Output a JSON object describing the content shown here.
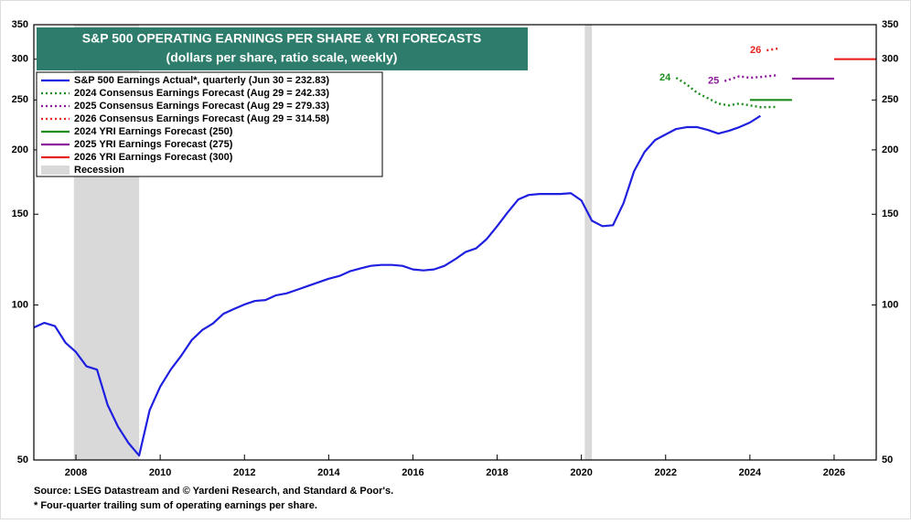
{
  "chart_data": {
    "type": "line",
    "title": "S&P 500 OPERATING EARNINGS PER SHARE & YRI FORECASTS",
    "subtitle": "(dollars per share, ratio scale, weekly)",
    "log_scale": true,
    "xlim": [
      2007,
      2027
    ],
    "xticks": [
      2008,
      2010,
      2012,
      2014,
      2016,
      2018,
      2020,
      2022,
      2024,
      2026
    ],
    "ylim": [
      50,
      350
    ],
    "yticks": [
      50,
      100,
      150,
      200,
      250,
      300,
      350
    ],
    "series": [
      {
        "name": "S&P 500 Earnings Actual*, quarterly (Jun 30 = 232.83)",
        "color": "#1f1fe0",
        "style": "solid",
        "x": [
          2007,
          2007.25,
          2007.5,
          2007.75,
          2008,
          2008.25,
          2008.5,
          2008.75,
          2009,
          2009.25,
          2009.5,
          2009.75,
          2010,
          2010.25,
          2010.5,
          2010.75,
          2011,
          2011.25,
          2011.5,
          2011.75,
          2012,
          2012.25,
          2012.5,
          2012.75,
          2013,
          2013.25,
          2013.5,
          2013.75,
          2014,
          2014.25,
          2014.5,
          2014.75,
          2015,
          2015.25,
          2015.5,
          2015.75,
          2016,
          2016.25,
          2016.5,
          2016.75,
          2017,
          2017.25,
          2017.5,
          2017.75,
          2018,
          2018.25,
          2018.5,
          2018.75,
          2019,
          2019.25,
          2019.5,
          2019.75,
          2020,
          2020.25,
          2020.5,
          2020.75,
          2021,
          2021.25,
          2021.5,
          2021.75,
          2022,
          2022.25,
          2022.5,
          2022.75,
          2023,
          2023.25,
          2023.5,
          2023.75,
          2024,
          2024.25
        ],
        "values": [
          90.4,
          92.3,
          91,
          84.5,
          81,
          76,
          74.9,
          64,
          58,
          53.9,
          51,
          62.5,
          69.4,
          74.9,
          79.7,
          85.5,
          89.4,
          92,
          96.1,
          98.2,
          100.2,
          101.8,
          102.2,
          104.4,
          105.3,
          107,
          108.8,
          110.6,
          112.4,
          113.8,
          116.2,
          117.7,
          119.1,
          119.6,
          119.6,
          119.1,
          117.2,
          116.7,
          117.2,
          119.1,
          122.6,
          126.7,
          128.8,
          134.2,
          142.2,
          151.3,
          160.2,
          163.5,
          164.2,
          164.2,
          164.2,
          164.8,
          159.5,
          145.7,
          142.2,
          142.8,
          157.6,
          181.8,
          198.2,
          209,
          214.3,
          219.6,
          221.4,
          221.4,
          218.7,
          215.1,
          217.8,
          221.4,
          226,
          232.83
        ]
      },
      {
        "name": "2024 Consensus Earnings Forecast (Aug 29 = 242.33)",
        "color": "#1e8c1e",
        "style": "dotted",
        "tag": "24",
        "x": [
          2022.25,
          2022.5,
          2022.75,
          2023,
          2023.25,
          2023.5,
          2023.75,
          2024,
          2024.25,
          2024.66
        ],
        "values": [
          276,
          268,
          258,
          252,
          246,
          244,
          246,
          244,
          242,
          242.33
        ]
      },
      {
        "name": "2025 Consensus Earnings Forecast (Aug 29 = 279.33)",
        "color": "#8b1a9a",
        "style": "dotted",
        "tag": "25",
        "x": [
          2023.4,
          2023.75,
          2024,
          2024.25,
          2024.66
        ],
        "values": [
          272,
          278,
          276,
          277,
          279.33
        ]
      },
      {
        "name": "2026 Consensus Earnings Forecast (Aug 29 = 314.58)",
        "color": "#e8231e",
        "style": "dotted",
        "tag": "26",
        "x": [
          2024.4,
          2024.66
        ],
        "values": [
          312,
          314.58
        ]
      },
      {
        "name": "2024 YRI Earnings Forecast (250)",
        "color": "#1e8c1e",
        "style": "solid",
        "x": [
          2024,
          2025
        ],
        "values": [
          250,
          250
        ]
      },
      {
        "name": "2025 YRI Earnings Forecast (275)",
        "color": "#8b1a9a",
        "style": "solid",
        "x": [
          2025,
          2026
        ],
        "values": [
          275,
          275
        ]
      },
      {
        "name": "2026 YRI Earnings Forecast (300)",
        "color": "#e8231e",
        "style": "solid",
        "x": [
          2026,
          2027
        ],
        "values": [
          300,
          300
        ]
      }
    ],
    "recession_label": "Recession",
    "recessions": [
      {
        "start": 2007.95,
        "end": 2009.5
      },
      {
        "start": 2020.08,
        "end": 2020.25
      }
    ],
    "notes": [
      "Source: LSEG Datastream and © Yardeni Research, and Standard & Poor's.",
      "* Four-quarter trailing sum of operating earnings per share."
    ]
  }
}
